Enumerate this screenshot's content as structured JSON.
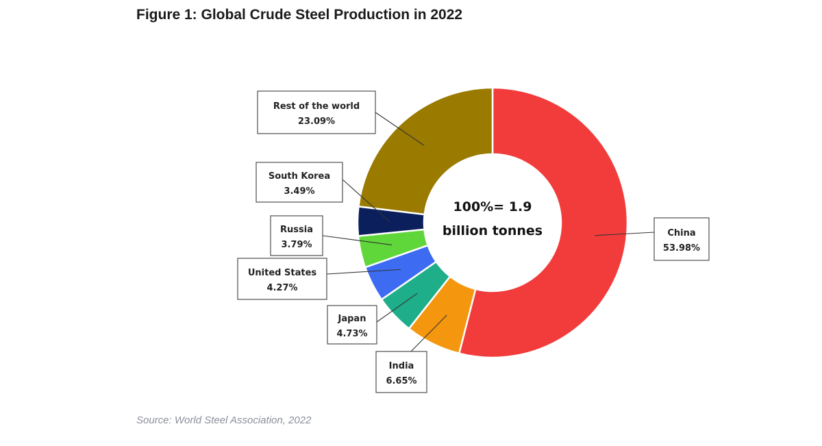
{
  "title": "Figure 1: Global Crude Steel Production in 2022",
  "source": "Source: World Steel Association, 2022",
  "chart_data": {
    "type": "pie",
    "donut": true,
    "center_label": [
      "100%= 1.9",
      "billion tonnes"
    ],
    "slices": [
      {
        "label": "China",
        "value": 53.98,
        "value_text": "53.98%",
        "color": "#f23c3c"
      },
      {
        "label": "India",
        "value": 6.65,
        "value_text": "6.65%",
        "color": "#f5960f"
      },
      {
        "label": "Japan",
        "value": 4.73,
        "value_text": "4.73%",
        "color": "#1fae8a"
      },
      {
        "label": "United States",
        "value": 4.27,
        "value_text": "4.27%",
        "color": "#3d6cf2"
      },
      {
        "label": "Russia",
        "value": 3.79,
        "value_text": "3.79%",
        "color": "#5fd63a"
      },
      {
        "label": "South Korea",
        "value": 3.49,
        "value_text": "3.49%",
        "color": "#0b1f5c"
      },
      {
        "label": "Rest of the world",
        "value": 23.09,
        "value_text": "23.09%",
        "color": "#9a7b00"
      }
    ]
  }
}
